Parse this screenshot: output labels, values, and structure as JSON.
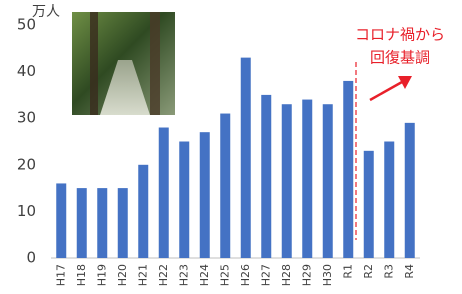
{
  "chart_data": {
    "type": "bar",
    "unit_label": "万人",
    "categories": [
      "H17",
      "H18",
      "H19",
      "H20",
      "H21",
      "H22",
      "H23",
      "H24",
      "H25",
      "H26",
      "H27",
      "H28",
      "H29",
      "H30",
      "R1",
      "R2",
      "R3",
      "R4"
    ],
    "values": [
      16,
      15,
      15,
      15,
      20,
      28,
      25,
      27,
      31,
      43,
      35,
      33,
      34,
      33,
      38,
      23,
      25,
      29
    ],
    "color": "#4472c4",
    "ylim": [
      0,
      50
    ],
    "yticks": [
      0,
      10,
      20,
      30,
      40,
      50
    ],
    "grid": false,
    "annotation": [
      "コロナ禍から",
      "回復基調"
    ],
    "annotation_color": "#e8202a"
  }
}
